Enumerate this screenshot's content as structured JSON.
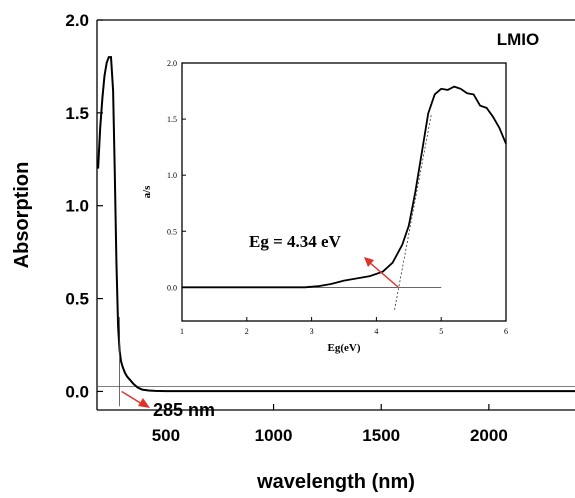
{
  "chart_data": [
    {
      "type": "line",
      "title": "",
      "xlabel": "wavelength (nm)",
      "ylabel": "Absorption",
      "xlim": [
        180,
        2400
      ],
      "ylim": [
        -0.1,
        2.0
      ],
      "xticks": [
        500,
        1000,
        1500,
        2000
      ],
      "xtick_labels": [
        "500",
        "1000",
        "1500",
        "2000"
      ],
      "yticks": [
        0.0,
        0.5,
        1.0,
        1.5,
        2.0
      ],
      "ytick_labels": [
        "0.0",
        "0.5",
        "1.0",
        "1.5",
        "2.0"
      ],
      "legend_label": "LMIO",
      "annotation": "285 nm",
      "annotation_x": 285,
      "series": [
        {
          "color": "#000000",
          "x": [
            185,
            195,
            205,
            215,
            225,
            235,
            245,
            255,
            262,
            270,
            278,
            285,
            292,
            300,
            310,
            320,
            335,
            350,
            370,
            390,
            420,
            450,
            500,
            600,
            800,
            1000,
            1200,
            1400,
            1600,
            1800,
            2000,
            2200,
            2400
          ],
          "y": [
            1.2,
            1.42,
            1.58,
            1.7,
            1.77,
            1.8,
            1.8,
            1.62,
            1.2,
            0.7,
            0.35,
            0.22,
            0.16,
            0.13,
            0.1,
            0.08,
            0.06,
            0.04,
            0.02,
            0.01,
            0.005,
            0.003,
            0.002,
            0.002,
            0.002,
            0.002,
            0.002,
            0.002,
            0.002,
            0.002,
            0.002,
            0.002,
            0.002
          ]
        }
      ]
    },
    {
      "type": "line",
      "title": "",
      "xlabel": "Eg(eV)",
      "ylabel": "a/s",
      "xlim": [
        1,
        6
      ],
      "ylim": [
        -0.3,
        2.0
      ],
      "xticks": [
        1,
        2,
        3,
        4,
        5,
        6
      ],
      "xtick_labels": [
        "1",
        "2",
        "3",
        "4",
        "5",
        "6"
      ],
      "yticks": [
        0.0,
        0.5,
        1.0,
        1.5,
        2.0
      ],
      "ytick_labels": [
        "0.0",
        "0.5",
        "1.0",
        "1.5",
        "2.0"
      ],
      "annotation": "Eg = 4.34 eV",
      "annotation_x": 4.34,
      "series": [
        {
          "color": "#000000",
          "x": [
            1.0,
            2.0,
            2.9,
            3.1,
            3.3,
            3.5,
            3.7,
            3.9,
            4.1,
            4.25,
            4.4,
            4.5,
            4.6,
            4.7,
            4.8,
            4.9,
            5.0,
            5.1,
            5.2,
            5.3,
            5.4,
            5.5,
            5.6,
            5.7,
            5.8,
            5.9,
            6.0
          ],
          "y": [
            0.0,
            0.0,
            0.0,
            0.01,
            0.03,
            0.06,
            0.08,
            0.1,
            0.14,
            0.22,
            0.38,
            0.55,
            0.85,
            1.2,
            1.55,
            1.72,
            1.77,
            1.76,
            1.79,
            1.77,
            1.73,
            1.72,
            1.62,
            1.6,
            1.52,
            1.42,
            1.28
          ]
        }
      ]
    }
  ]
}
